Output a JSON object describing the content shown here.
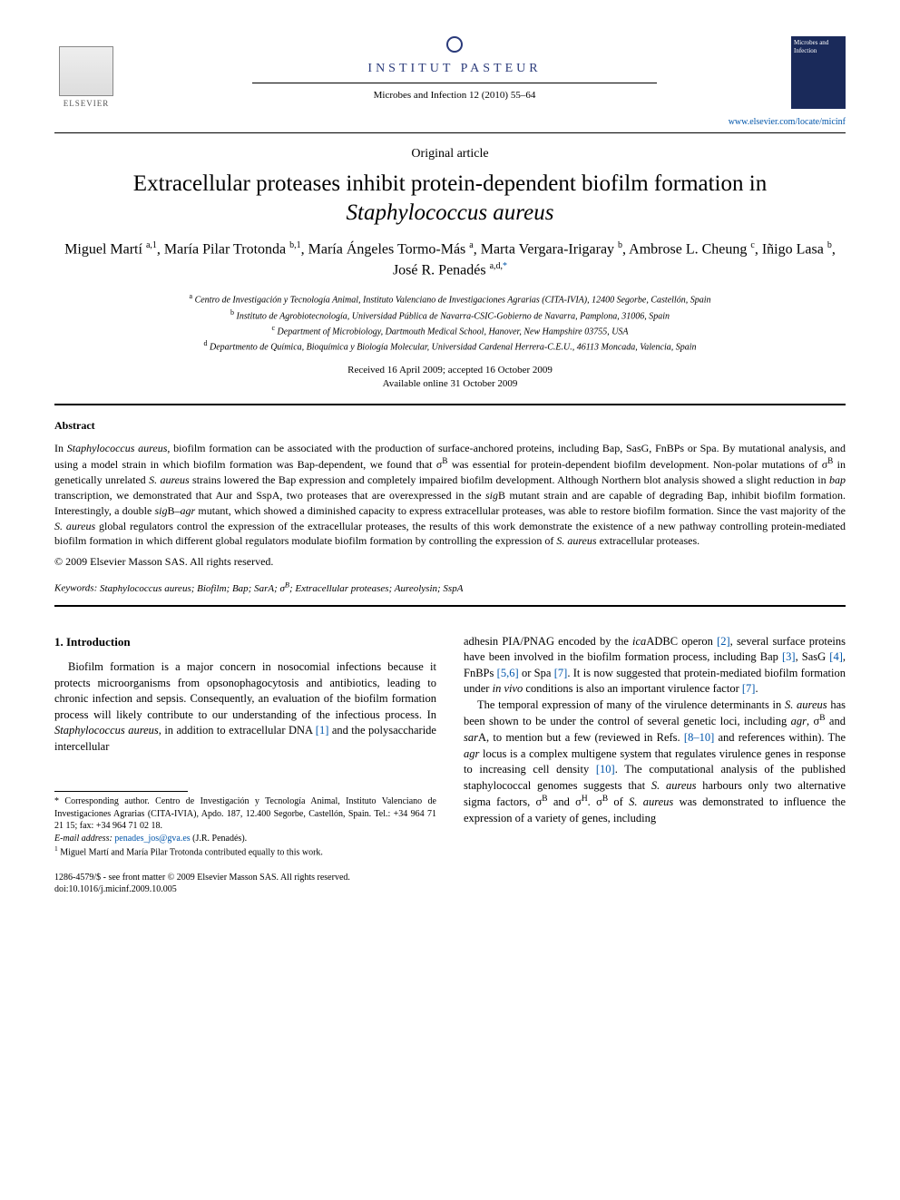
{
  "header": {
    "elsevier_label": "ELSEVIER",
    "pasteur_label": "INSTITUT PASTEUR",
    "citation": "Microbes and Infection 12 (2010) 55–64",
    "journal_url": "www.elsevier.com/locate/micinf",
    "cover_text": "Microbes and Infection"
  },
  "article_type": "Original article",
  "title_pre": "Extracellular proteases inhibit protein-dependent biofilm formation in ",
  "title_ital": "Staphylococcus aureus",
  "authors_html": "Miguel Martí <sup>a,1</sup>, María Pilar Trotonda <sup>b,1</sup>, María Ángeles Tormo-Más <sup>a</sup>, Marta Vergara-Irigaray <sup>b</sup>, Ambrose L. Cheung <sup>c</sup>, Iñigo Lasa <sup>b</sup>, José R. Penadés <sup>a,d,</sup><sup class='corr'>*</sup>",
  "affiliations": {
    "a": "Centro de Investigación y Tecnología Animal, Instituto Valenciano de Investigaciones Agrarias (CITA-IVIA), 12400 Segorbe, Castellón, Spain",
    "b": "Instituto de Agrobiotecnología, Universidad Pública de Navarra-CSIC-Gobierno de Navarra, Pamplona, 31006, Spain",
    "c": "Department of Microbiology, Dartmouth Medical School, Hanover, New Hampshire 03755, USA",
    "d": "Departmento de Química, Bioquímica y Biología Molecular, Universidad Cardenal Herrera-C.E.U., 46113 Moncada, Valencia, Spain"
  },
  "dates": {
    "received_accepted": "Received 16 April 2009; accepted 16 October 2009",
    "online": "Available online 31 October 2009"
  },
  "abstract": {
    "heading": "Abstract",
    "body": "In <span class='ital'>Staphylococcus aureus</span>, biofilm formation can be associated with the production of surface-anchored proteins, including Bap, SasG, FnBPs or Spa. By mutational analysis, and using a model strain in which biofilm formation was Bap-dependent, we found that σ<sup>B</sup> was essential for protein-dependent biofilm development. Non-polar mutations of σ<sup>B</sup> in genetically unrelated <span class='ital'>S. aureus</span> strains lowered the Bap expression and completely impaired biofilm development. Although Northern blot analysis showed a slight reduction in <span class='ital'>bap</span> transcription, we demonstrated that Aur and SspA, two proteases that are overexpressed in the <span class='ital'>sig</span>B mutant strain and are capable of degrading Bap, inhibit biofilm formation. Interestingly, a double <span class='ital'>sig</span>B–<span class='ital'>agr</span> mutant, which showed a diminished capacity to express extracellular proteases, was able to restore biofilm formation. Since the vast majority of the <span class='ital'>S. aureus</span> global regulators control the expression of the extracellular proteases, the results of this work demonstrate the existence of a new pathway controlling protein-mediated biofilm formation in which different global regulators modulate biofilm formation by controlling the expression of <span class='ital'>S. aureus</span> extracellular proteases.",
    "copyright": "© 2009 Elsevier Masson SAS. All rights reserved."
  },
  "keywords": {
    "label": "Keywords:",
    "list": "Staphylococcus aureus; Biofilm; Bap; SarA; σ<sup>B</sup>; Extracellular proteases; Aureolysin; SspA"
  },
  "introduction": {
    "heading": "1. Introduction",
    "col1_p1": "Biofilm formation is a major concern in nosocomial infections because it protects microorganisms from opsonophagocytosis and antibiotics, leading to chronic infection and sepsis. Consequently, an evaluation of the biofilm formation process will likely contribute to our understanding of the infectious process. In <span class='ital'>Staphylococcus aureus</span>, in addition to extracellular DNA <span class='ref'>[1]</span> and the polysaccharide intercellular",
    "col2_p1": "adhesin PIA/PNAG encoded by the <span class='ital'>ica</span>ADBC operon <span class='ref'>[2]</span>, several surface proteins have been involved in the biofilm formation process, including Bap <span class='ref'>[3]</span>, SasG <span class='ref'>[4]</span>, FnBPs <span class='ref'>[5,6]</span> or Spa <span class='ref'>[7]</span>. It is now suggested that protein-mediated biofilm formation under <span class='ital'>in vivo</span> conditions is also an important virulence factor <span class='ref'>[7]</span>.",
    "col2_p2": "The temporal expression of many of the virulence determinants in <span class='ital'>S. aureus</span> has been shown to be under the control of several genetic loci, including <span class='ital'>agr</span>, σ<sup>B</sup> and <span class='ital'>sar</span>A, to mention but a few (reviewed in Refs. <span class='ref'>[8–10]</span> and references within). The <span class='ital'>agr</span> locus is a complex multigene system that regulates virulence genes in response to increasing cell density <span class='ref'>[10]</span>. The computational analysis of the published staphylococcal genomes suggests that <span class='ital'>S. aureus</span> harbours only two alternative sigma factors, σ<sup>B</sup> and σ<sup>H</sup>. σ<sup>B</sup> of <span class='ital'>S. aureus</span> was demonstrated to influence the expression of a variety of genes, including"
  },
  "footnotes": {
    "corr": "* Corresponding author. Centro de Investigación y Tecnología Animal, Instituto Valenciano de Investigaciones Agrarias (CITA-IVIA), Apdo. 187, 12.400 Segorbe, Castellón, Spain. Tel.: +34 964 71 21 15; fax: +34 964 71 02 18.",
    "email_label": "E-mail address:",
    "email": "penades_jos@gva.es",
    "email_who": "(J.R. Penadés).",
    "note1": "Miguel Martí and María Pilar Trotonda contributed equally to this work."
  },
  "footer": {
    "line1": "1286-4579/$ - see front matter © 2009 Elsevier Masson SAS. All rights reserved.",
    "line2": "doi:10.1016/j.micinf.2009.10.005"
  },
  "colors": {
    "link": "#0055aa",
    "text": "#000000",
    "pasteur": "#2a3a7a"
  }
}
